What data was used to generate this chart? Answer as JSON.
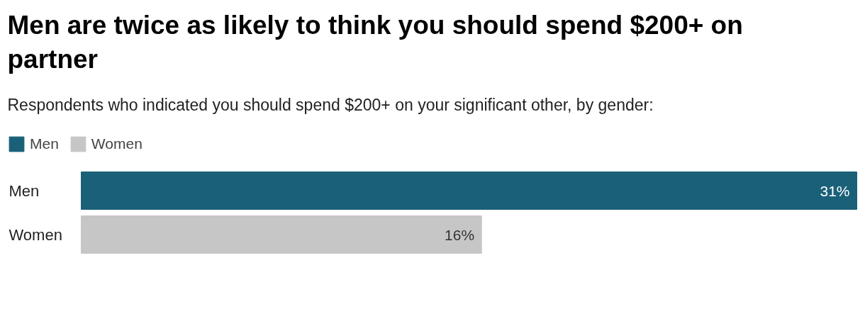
{
  "chart_data": {
    "type": "bar",
    "orientation": "horizontal",
    "title": "Men are twice as likely to think you should spend $200+ on partner",
    "subtitle": "Respondents who indicated you should spend $200+ on your significant other, by gender:",
    "categories": [
      "Men",
      "Women"
    ],
    "series": [
      {
        "name": "Men",
        "color": "#1a6079",
        "values": [
          31,
          null
        ],
        "value_labels": [
          "31%",
          null
        ]
      },
      {
        "name": "Women",
        "color": "#c6c6c6",
        "values": [
          null,
          16
        ],
        "value_labels": [
          null,
          "16%"
        ]
      }
    ],
    "legend": "top left"
  }
}
